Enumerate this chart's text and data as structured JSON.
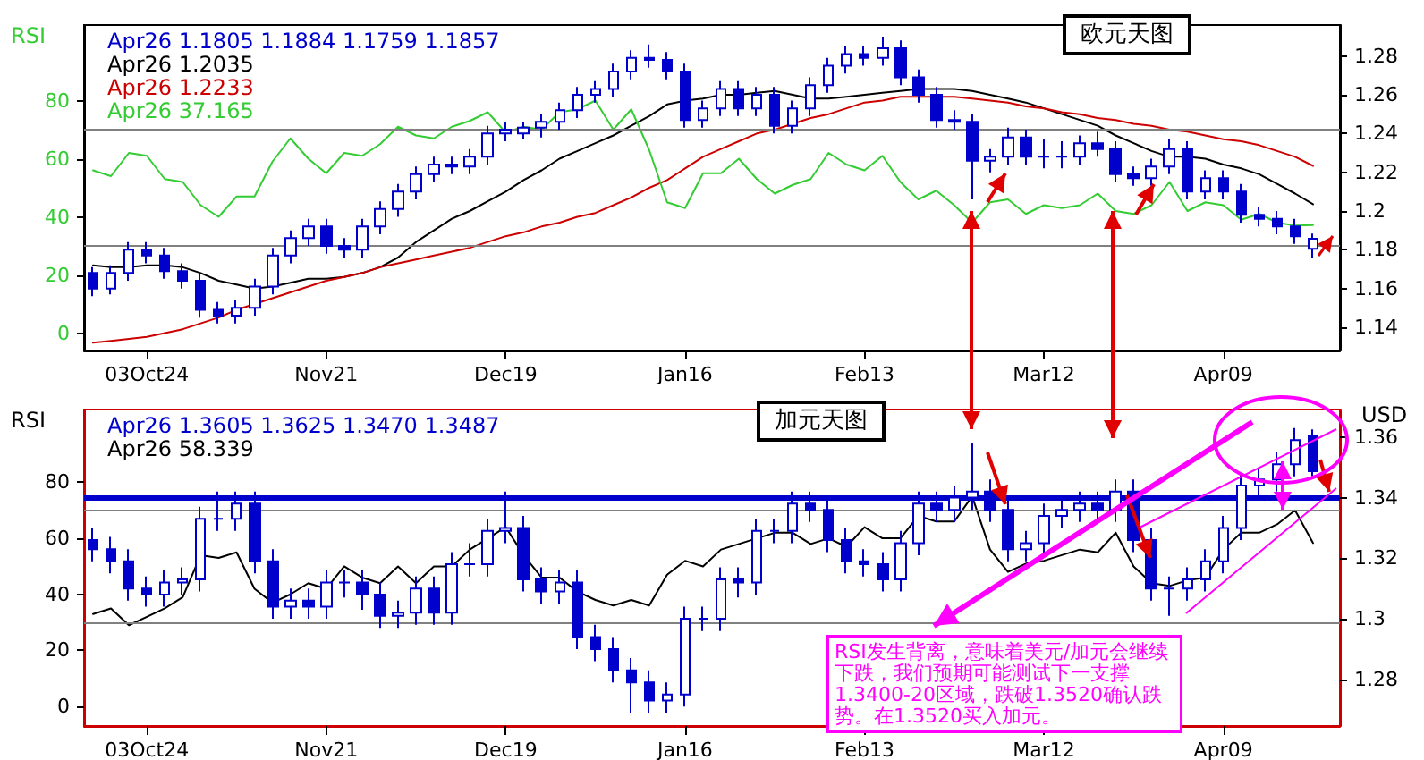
{
  "chart_data": [
    {
      "type": "candlestick",
      "ylabel": "RSI",
      "legend": "top left",
      "annotations": [
        "欧元天图"
      ],
      "categories": [
        null,
        null,
        null,
        "03Oct24",
        null,
        null,
        null,
        null,
        null,
        null,
        null,
        null,
        null,
        "Nov21",
        null,
        null,
        null,
        null,
        null,
        null,
        null,
        null,
        null,
        "Dec19",
        null,
        null,
        null,
        null,
        null,
        null,
        null,
        null,
        null,
        "Jan16",
        null,
        null,
        null,
        null,
        null,
        null,
        null,
        null,
        null,
        "Feb13",
        null,
        null,
        null,
        null,
        null,
        null,
        null,
        null,
        null,
        "Mar12",
        null,
        null,
        null,
        null,
        null,
        null,
        null,
        null,
        null,
        "Apr09",
        null,
        null,
        null,
        null,
        null,
        null
      ],
      "ylim": [
        -6,
        106
      ],
      "yticks": [
        0,
        20,
        40,
        60,
        80
      ],
      "y2lim": [
        1.128,
        1.296
      ],
      "y2ticks": [
        1.14,
        1.16,
        1.18,
        1.2,
        1.22,
        1.24,
        1.26,
        1.28
      ],
      "ref_lines": [
        {
          "axis": "y",
          "value": 30,
          "color": "#808080"
        },
        {
          "axis": "y",
          "value": 70,
          "color": "#808080"
        }
      ],
      "series": [
        {
          "type": "candlestick",
          "name": "Apr26 1.1805 1.1884 1.1759 1.1857",
          "color": "#0000cc",
          "axis": "y2",
          "ohlc": [
            [
              1.168,
              1.171,
              1.156,
              1.16
            ],
            [
              1.16,
              1.172,
              1.157,
              1.168
            ],
            [
              1.168,
              1.184,
              1.164,
              1.18
            ],
            [
              1.18,
              1.184,
              1.173,
              1.177
            ],
            [
              1.177,
              1.181,
              1.165,
              1.169
            ],
            [
              1.169,
              1.173,
              1.16,
              1.164
            ],
            [
              1.164,
              1.168,
              1.145,
              1.149
            ],
            [
              1.149,
              1.153,
              1.142,
              1.146
            ],
            [
              1.146,
              1.154,
              1.142,
              1.15
            ],
            [
              1.15,
              1.165,
              1.146,
              1.161
            ],
            [
              1.161,
              1.181,
              1.157,
              1.177
            ],
            [
              1.177,
              1.19,
              1.173,
              1.186
            ],
            [
              1.186,
              1.196,
              1.182,
              1.192
            ],
            [
              1.192,
              1.196,
              1.178,
              1.182
            ],
            [
              1.182,
              1.186,
              1.176,
              1.18
            ],
            [
              1.18,
              1.196,
              1.176,
              1.192
            ],
            [
              1.192,
              1.205,
              1.188,
              1.201
            ],
            [
              1.201,
              1.214,
              1.197,
              1.21
            ],
            [
              1.21,
              1.223,
              1.206,
              1.219
            ],
            [
              1.219,
              1.228,
              1.215,
              1.224
            ],
            [
              1.224,
              1.228,
              1.219,
              1.223
            ],
            [
              1.223,
              1.232,
              1.219,
              1.228
            ],
            [
              1.228,
              1.244,
              1.224,
              1.24
            ],
            [
              1.24,
              1.246,
              1.236,
              1.242
            ],
            [
              1.24,
              1.246,
              1.237,
              1.243
            ],
            [
              1.243,
              1.25,
              1.238,
              1.246
            ],
            [
              1.246,
              1.256,
              1.242,
              1.252
            ],
            [
              1.252,
              1.264,
              1.248,
              1.26
            ],
            [
              1.26,
              1.267,
              1.256,
              1.263
            ],
            [
              1.263,
              1.276,
              1.259,
              1.272
            ],
            [
              1.272,
              1.283,
              1.268,
              1.279
            ],
            [
              1.279,
              1.286,
              1.274,
              1.278
            ],
            [
              1.278,
              1.282,
              1.268,
              1.272
            ],
            [
              1.272,
              1.276,
              1.243,
              1.247
            ],
            [
              1.247,
              1.257,
              1.243,
              1.253
            ],
            [
              1.253,
              1.267,
              1.249,
              1.263
            ],
            [
              1.263,
              1.267,
              1.249,
              1.253
            ],
            [
              1.253,
              1.264,
              1.249,
              1.26
            ],
            [
              1.26,
              1.264,
              1.24,
              1.244
            ],
            [
              1.244,
              1.257,
              1.24,
              1.253
            ],
            [
              1.253,
              1.269,
              1.249,
              1.265
            ],
            [
              1.265,
              1.279,
              1.261,
              1.275
            ],
            [
              1.275,
              1.285,
              1.271,
              1.281
            ],
            [
              1.281,
              1.285,
              1.275,
              1.279
            ],
            [
              1.279,
              1.29,
              1.275,
              1.284
            ],
            [
              1.284,
              1.288,
              1.265,
              1.269
            ],
            [
              1.269,
              1.273,
              1.256,
              1.26
            ],
            [
              1.26,
              1.264,
              1.243,
              1.247
            ],
            [
              1.247,
              1.252,
              1.242,
              1.246
            ],
            [
              1.246,
              1.25,
              1.206,
              1.226
            ],
            [
              1.226,
              1.232,
              1.22,
              1.228
            ],
            [
              1.228,
              1.243,
              1.224,
              1.238
            ],
            [
              1.238,
              1.242,
              1.224,
              1.228
            ],
            [
              1.228,
              1.237,
              1.222,
              1.228
            ],
            [
              1.228,
              1.236,
              1.222,
              1.228
            ],
            [
              1.228,
              1.239,
              1.224,
              1.235
            ],
            [
              1.235,
              1.241,
              1.228,
              1.232
            ],
            [
              1.232,
              1.236,
              1.215,
              1.219
            ],
            [
              1.219,
              1.223,
              1.213,
              1.217
            ],
            [
              1.217,
              1.227,
              1.213,
              1.223
            ],
            [
              1.223,
              1.237,
              1.219,
              1.232
            ],
            [
              1.232,
              1.236,
              1.206,
              1.21
            ],
            [
              1.21,
              1.221,
              1.206,
              1.217
            ],
            [
              1.217,
              1.221,
              1.206,
              1.21
            ],
            [
              1.21,
              1.214,
              1.194,
              1.198
            ],
            [
              1.198,
              1.202,
              1.192,
              1.196
            ],
            [
              1.196,
              1.2,
              1.188,
              1.192
            ],
            [
              1.192,
              1.196,
              1.183,
              1.187
            ],
            [
              1.1805,
              1.1884,
              1.1759,
              1.1857
            ],
            null
          ]
        },
        {
          "type": "line",
          "name": "Apr26 1.2035",
          "color": "#000000",
          "axis": "y2",
          "values": [
            1.172,
            1.171,
            1.171,
            1.172,
            1.172,
            1.171,
            1.168,
            1.164,
            1.162,
            1.16,
            1.161,
            1.163,
            1.165,
            1.165,
            1.166,
            1.168,
            1.171,
            1.176,
            1.184,
            1.19,
            1.196,
            1.2,
            1.205,
            1.21,
            1.216,
            1.221,
            1.227,
            1.231,
            1.235,
            1.239,
            1.244,
            1.249,
            1.255,
            1.257,
            1.258,
            1.26,
            1.26,
            1.261,
            1.262,
            1.26,
            1.258,
            1.258,
            1.259,
            1.26,
            1.261,
            1.262,
            1.263,
            1.263,
            1.263,
            1.262,
            1.26,
            1.258,
            1.256,
            1.253,
            1.25,
            1.247,
            1.244,
            1.239,
            1.235,
            1.231,
            1.228,
            1.228,
            1.227,
            1.224,
            1.222,
            1.219,
            1.214,
            1.209,
            1.2035,
            null
          ]
        },
        {
          "type": "line",
          "name": "Apr26 1.2233",
          "color": "#cc0000",
          "axis": "y2",
          "values": [
            1.132,
            1.133,
            1.134,
            1.135,
            1.137,
            1.139,
            1.142,
            1.145,
            1.149,
            1.152,
            1.155,
            1.158,
            1.161,
            1.164,
            1.166,
            1.168,
            1.171,
            1.173,
            1.175,
            1.177,
            1.179,
            1.181,
            1.184,
            1.187,
            1.189,
            1.192,
            1.194,
            1.197,
            1.199,
            1.203,
            1.207,
            1.212,
            1.216,
            1.222,
            1.228,
            1.232,
            1.236,
            1.24,
            1.242,
            1.245,
            1.248,
            1.25,
            1.253,
            1.256,
            1.257,
            1.259,
            1.259,
            1.259,
            1.259,
            1.258,
            1.257,
            1.256,
            1.254,
            1.253,
            1.251,
            1.25,
            1.248,
            1.247,
            1.245,
            1.244,
            1.242,
            1.241,
            1.239,
            1.237,
            1.236,
            1.234,
            1.231,
            1.228,
            1.2233,
            null
          ]
        },
        {
          "type": "line",
          "name": "Apr26 37.165",
          "color": "#33cc33",
          "values": [
            56,
            54,
            62,
            61,
            53,
            52,
            44,
            40,
            47,
            47,
            59,
            67,
            60,
            55,
            62,
            61,
            65,
            71,
            68,
            67,
            71,
            73,
            76,
            69,
            71,
            70,
            76,
            77,
            80,
            70,
            77,
            63,
            45,
            43,
            55,
            55,
            60,
            53,
            48,
            51,
            53,
            62,
            58,
            56,
            61,
            52,
            46,
            49,
            44,
            38,
            45,
            46,
            41,
            44,
            43,
            44,
            48,
            42,
            41,
            44,
            52,
            42,
            45,
            44,
            39,
            41,
            38,
            37,
            37.165,
            null
          ]
        }
      ]
    },
    {
      "type": "candlestick",
      "ylabel": "RSI",
      "y2label": "USD",
      "legend": "top left",
      "annotations": [
        "加元天图",
        "RSI发生背离，意味着美元/加元会继续下跌，我们预期可能测试下一支撑1.3400-20区域，跌破1.3520确认跌势。在1.3520买入加元。"
      ],
      "categories": [
        null,
        null,
        null,
        "03Oct24",
        null,
        null,
        null,
        null,
        null,
        null,
        null,
        null,
        null,
        "Nov21",
        null,
        null,
        null,
        null,
        null,
        null,
        null,
        null,
        null,
        "Dec19",
        null,
        null,
        null,
        null,
        null,
        null,
        null,
        null,
        null,
        "Jan16",
        null,
        null,
        null,
        null,
        null,
        null,
        null,
        null,
        null,
        "Feb13",
        null,
        null,
        null,
        null,
        null,
        null,
        null,
        null,
        null,
        "Mar12",
        null,
        null,
        null,
        null,
        null,
        null,
        null,
        null,
        null,
        "Apr09",
        null,
        null,
        null,
        null,
        null,
        null
      ],
      "ylim": [
        -7,
        106
      ],
      "yticks": [
        0,
        20,
        40,
        60,
        80
      ],
      "y2lim": [
        1.2646,
        1.3691
      ],
      "y2ticks": [
        1.28,
        1.3,
        1.32,
        1.34,
        1.36
      ],
      "ref_lines": [
        {
          "axis": "y",
          "value": 30,
          "color": "#808080"
        },
        {
          "axis": "y",
          "value": 70,
          "color": "#808080"
        },
        {
          "axis": "y2",
          "value": 1.34,
          "color": "#0000cc"
        }
      ],
      "series": [
        {
          "type": "candlestick",
          "name": "Apr26 1.3605 1.3625 1.3470 1.3487",
          "color": "#0000cc",
          "axis": "y2",
          "ohlc": [
            [
              1.326,
              1.33,
              1.319,
              1.323
            ],
            [
              1.323,
              1.327,
              1.315,
              1.319
            ],
            [
              1.319,
              1.323,
              1.306,
              1.31
            ],
            [
              1.31,
              1.314,
              1.304,
              1.308
            ],
            [
              1.308,
              1.316,
              1.304,
              1.312
            ],
            [
              1.312,
              1.317,
              1.308,
              1.313
            ],
            [
              1.313,
              1.337,
              1.309,
              1.333
            ],
            [
              1.333,
              1.342,
              1.329,
              1.333
            ],
            [
              1.333,
              1.342,
              1.329,
              1.338
            ],
            [
              1.338,
              1.342,
              1.315,
              1.319
            ],
            [
              1.319,
              1.323,
              1.3,
              1.304
            ],
            [
              1.304,
              1.31,
              1.3,
              1.306
            ],
            [
              1.306,
              1.31,
              1.3,
              1.304
            ],
            [
              1.304,
              1.316,
              1.3,
              1.312
            ],
            [
              1.312,
              1.316,
              1.307,
              1.312
            ],
            [
              1.312,
              1.316,
              1.303,
              1.308
            ],
            [
              1.308,
              1.312,
              1.297,
              1.301
            ],
            [
              1.301,
              1.306,
              1.297,
              1.302
            ],
            [
              1.302,
              1.314,
              1.298,
              1.31
            ],
            [
              1.31,
              1.314,
              1.298,
              1.302
            ],
            [
              1.302,
              1.322,
              1.298,
              1.318
            ],
            [
              1.318,
              1.325,
              1.314,
              1.318
            ],
            [
              1.318,
              1.333,
              1.314,
              1.329
            ],
            [
              1.329,
              1.342,
              1.325,
              1.33
            ],
            [
              1.33,
              1.334,
              1.309,
              1.313
            ],
            [
              1.313,
              1.317,
              1.305,
              1.309
            ],
            [
              1.309,
              1.316,
              1.305,
              1.312
            ],
            [
              1.312,
              1.316,
              1.29,
              1.294
            ],
            [
              1.294,
              1.298,
              1.286,
              1.29
            ],
            [
              1.29,
              1.294,
              1.279,
              1.283
            ],
            [
              1.283,
              1.287,
              1.269,
              1.279
            ],
            [
              1.279,
              1.283,
              1.269,
              1.273
            ],
            [
              1.273,
              1.279,
              1.269,
              1.275
            ],
            [
              1.275,
              1.304,
              1.271,
              1.3
            ],
            [
              1.3,
              1.304,
              1.296,
              1.3
            ],
            [
              1.3,
              1.317,
              1.296,
              1.313
            ],
            [
              1.313,
              1.317,
              1.307,
              1.312
            ],
            [
              1.312,
              1.333,
              1.308,
              1.329
            ],
            [
              1.329,
              1.333,
              1.325,
              1.329
            ],
            [
              1.329,
              1.342,
              1.325,
              1.338
            ],
            [
              1.338,
              1.342,
              1.332,
              1.336
            ],
            [
              1.336,
              1.34,
              1.322,
              1.326
            ],
            [
              1.326,
              1.33,
              1.315,
              1.319
            ],
            [
              1.319,
              1.323,
              1.314,
              1.318
            ],
            [
              1.318,
              1.322,
              1.309,
              1.313
            ],
            [
              1.313,
              1.329,
              1.309,
              1.325
            ],
            [
              1.325,
              1.342,
              1.321,
              1.338
            ],
            [
              1.338,
              1.342,
              1.332,
              1.336
            ],
            [
              1.336,
              1.344,
              1.332,
              1.34
            ],
            [
              1.34,
              1.358,
              1.336,
              1.342
            ],
            [
              1.342,
              1.346,
              1.332,
              1.336
            ],
            [
              1.336,
              1.34,
              1.319,
              1.323
            ],
            [
              1.323,
              1.329,
              1.319,
              1.325
            ],
            [
              1.325,
              1.338,
              1.321,
              1.334
            ],
            [
              1.334,
              1.34,
              1.33,
              1.336
            ],
            [
              1.336,
              1.342,
              1.332,
              1.338
            ],
            [
              1.338,
              1.342,
              1.332,
              1.336
            ],
            [
              1.336,
              1.346,
              1.332,
              1.342
            ],
            [
              1.342,
              1.346,
              1.322,
              1.326
            ],
            [
              1.326,
              1.33,
              1.306,
              1.31
            ],
            [
              1.31,
              1.314,
              1.301,
              1.31
            ],
            [
              1.31,
              1.317,
              1.306,
              1.313
            ],
            [
              1.313,
              1.323,
              1.309,
              1.319
            ],
            [
              1.319,
              1.334,
              1.315,
              1.33
            ],
            [
              1.33,
              1.348,
              1.326,
              1.344
            ],
            [
              1.344,
              1.35,
              1.34,
              1.346
            ],
            [
              1.346,
              1.355,
              1.342,
              1.351
            ],
            [
              1.351,
              1.363,
              1.347,
              1.359
            ],
            [
              1.3605,
              1.3625,
              1.347,
              1.3487
            ],
            null
          ]
        },
        {
          "type": "line",
          "name": "Apr26 58.339",
          "color": "#000000",
          "values": [
            33,
            35,
            29,
            32,
            35,
            39,
            54,
            53,
            55,
            42,
            37,
            40,
            44,
            42,
            50,
            46,
            44,
            50,
            44,
            50,
            50,
            56,
            60,
            64,
            54,
            46,
            46,
            41,
            38,
            36,
            38,
            36,
            47,
            52,
            50,
            56,
            58,
            60,
            62,
            62,
            58,
            60,
            57,
            64,
            60,
            60,
            68,
            66,
            66,
            75,
            56,
            48,
            51,
            52,
            54,
            56,
            55,
            62,
            50,
            44,
            43,
            45,
            46,
            56,
            62,
            62,
            65,
            70,
            58.339,
            null
          ]
        }
      ]
    }
  ]
}
